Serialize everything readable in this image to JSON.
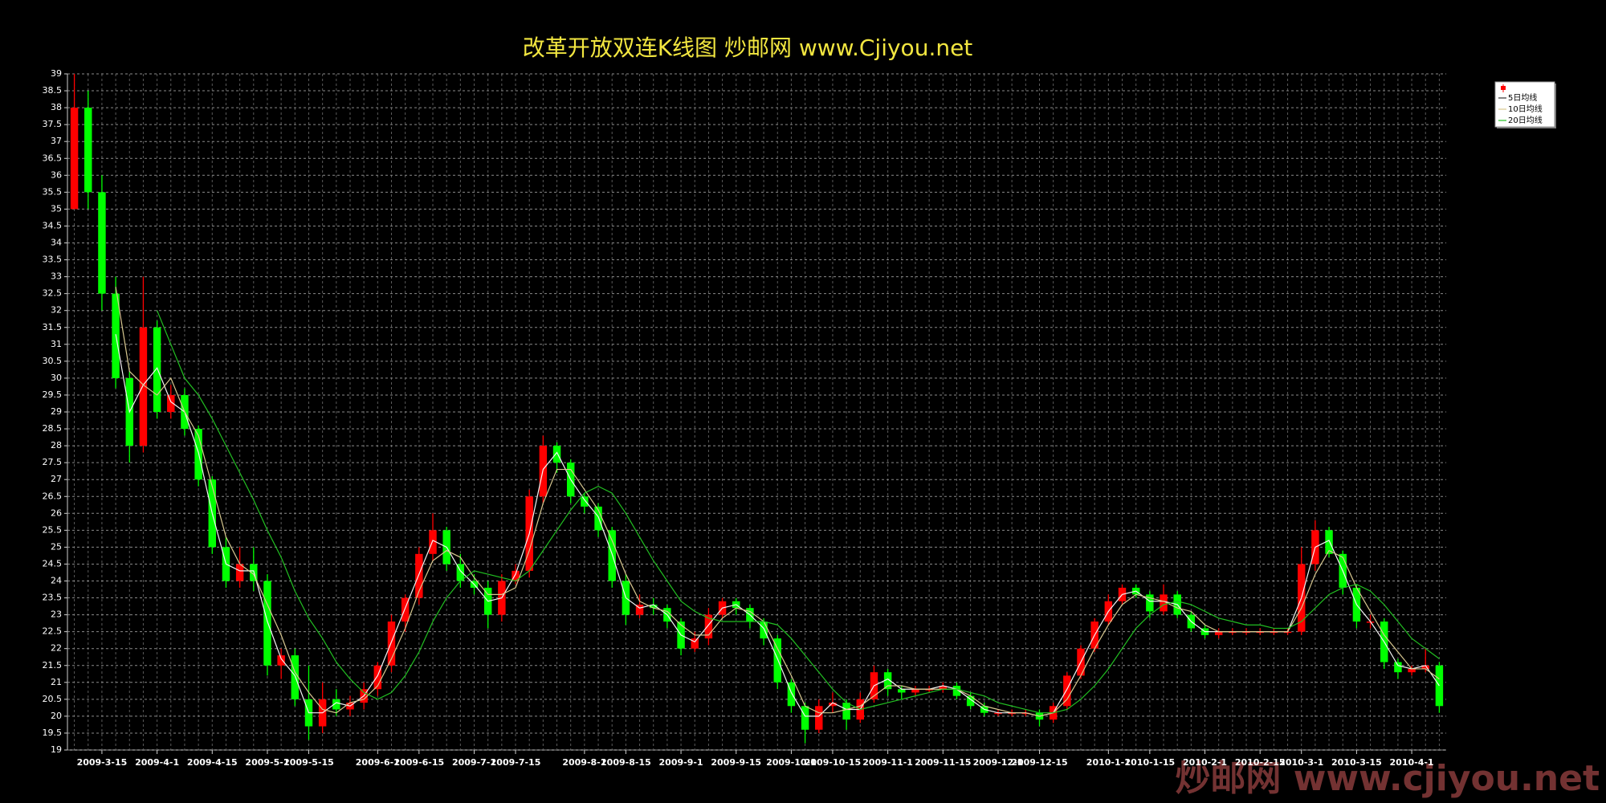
{
  "chart_data": {
    "type": "candlestick",
    "title": "改革开放双连K线图  炒邮网 www.Cjiyou.net",
    "watermark": "炒邮网 www.cjiyou.net",
    "categories": [
      null,
      null,
      "2009-3-15",
      null,
      null,
      null,
      "2009-4-1",
      null,
      null,
      null,
      "2009-4-15",
      null,
      null,
      null,
      "2009-5-1",
      null,
      null,
      "2009-5-15",
      null,
      null,
      null,
      null,
      "2009-6-1",
      null,
      null,
      "2009-6-15",
      null,
      null,
      null,
      "2009-7-1",
      null,
      null,
      "2009-7-15",
      null,
      null,
      null,
      null,
      "2009-8-1",
      null,
      null,
      "2009-8-15",
      null,
      null,
      null,
      "2009-9-1",
      null,
      null,
      null,
      "2009-9-15",
      null,
      null,
      null,
      "2009-10-1",
      null,
      null,
      "2009-10-15",
      null,
      null,
      null,
      "2009-11-1",
      null,
      null,
      null,
      "2009-11-15",
      null,
      null,
      null,
      "2009-12-1",
      null,
      null,
      "2009-12-15",
      null,
      null,
      null,
      null,
      "2010-1-1",
      null,
      null,
      "2010-1-15",
      null,
      null,
      null,
      "2010-2-1",
      null,
      null,
      null,
      "2010-2-15",
      null,
      null,
      "2010-3-1",
      null,
      null,
      null,
      "2010-3-15",
      null,
      null,
      null,
      "2010-4-1",
      null,
      null
    ],
    "ohlc": [
      [
        35,
        39,
        35,
        38
      ],
      [
        38,
        38.5,
        35,
        35.5
      ],
      [
        35.5,
        36,
        32,
        32.5
      ],
      [
        32.5,
        33,
        29.7,
        30
      ],
      [
        30,
        30.2,
        27.5,
        28
      ],
      [
        28,
        33,
        27.8,
        31.5
      ],
      [
        31.5,
        31.7,
        28.8,
        29
      ],
      [
        29,
        29.8,
        28.8,
        29.5
      ],
      [
        29.5,
        29.7,
        28.3,
        28.5
      ],
      [
        28.5,
        28.6,
        26.8,
        27
      ],
      [
        27,
        27.1,
        24.8,
        25
      ],
      [
        25,
        25.3,
        23.8,
        24
      ],
      [
        24,
        25,
        23.8,
        24.5
      ],
      [
        24.5,
        25,
        23.7,
        24
      ],
      [
        24,
        24.2,
        21.2,
        21.5
      ],
      [
        21.5,
        22,
        21.1,
        21.8
      ],
      [
        21.8,
        22,
        20.3,
        20.5
      ],
      [
        20.5,
        21.5,
        19.3,
        19.7
      ],
      [
        19.7,
        21,
        19.5,
        20.5
      ],
      [
        20.5,
        20.8,
        20,
        20.2
      ],
      [
        20.2,
        20.6,
        20,
        20.4
      ],
      [
        20.4,
        21,
        20.2,
        20.8
      ],
      [
        20.8,
        21.6,
        20.6,
        21.5
      ],
      [
        21.5,
        23,
        21.3,
        22.8
      ],
      [
        22.8,
        23.6,
        22.5,
        23.5
      ],
      [
        23.5,
        25,
        23.3,
        24.8
      ],
      [
        24.8,
        26,
        24.6,
        25.5
      ],
      [
        25.5,
        25.6,
        24.3,
        24.5
      ],
      [
        24.5,
        24.8,
        23.8,
        24
      ],
      [
        24,
        24.2,
        23.6,
        23.8
      ],
      [
        23.8,
        24,
        22.6,
        23
      ],
      [
        23,
        24.2,
        22.8,
        24
      ],
      [
        24,
        24.5,
        23.9,
        24.3
      ],
      [
        24.3,
        26.7,
        24.1,
        26.5
      ],
      [
        26.5,
        28.3,
        26.3,
        28
      ],
      [
        28,
        28.1,
        27.2,
        27.5
      ],
      [
        27.5,
        27.6,
        26.3,
        26.5
      ],
      [
        26.5,
        26.6,
        26,
        26.2
      ],
      [
        26.2,
        26.3,
        25.3,
        25.5
      ],
      [
        25.5,
        25.6,
        23.8,
        24
      ],
      [
        24,
        24.2,
        22.7,
        23
      ],
      [
        23,
        23.6,
        22.9,
        23.3
      ],
      [
        23.3,
        23.5,
        23,
        23.2
      ],
      [
        23.2,
        23.3,
        22.6,
        22.8
      ],
      [
        22.8,
        22.9,
        21.8,
        22
      ],
      [
        22,
        22.5,
        21.9,
        22.3
      ],
      [
        22.3,
        23.2,
        22.1,
        23
      ],
      [
        23,
        23.5,
        22.9,
        23.4
      ],
      [
        23.4,
        23.5,
        23,
        23.2
      ],
      [
        23.2,
        23.3,
        22.6,
        22.8
      ],
      [
        22.8,
        22.9,
        22.1,
        22.3
      ],
      [
        22.3,
        22.4,
        20.8,
        21
      ],
      [
        21,
        21.1,
        20.1,
        20.3
      ],
      [
        20.3,
        20.4,
        19.2,
        19.6
      ],
      [
        19.6,
        20.5,
        19.5,
        20.3
      ],
      [
        20.3,
        20.7,
        20.1,
        20.4
      ],
      [
        20.4,
        20.5,
        19.6,
        19.9
      ],
      [
        19.9,
        20.7,
        19.8,
        20.5
      ],
      [
        20.5,
        21.5,
        20.4,
        21.3
      ],
      [
        21.3,
        21.4,
        20.6,
        20.8
      ],
      [
        20.8,
        20.9,
        20.5,
        20.7
      ],
      [
        20.7,
        20.9,
        20.6,
        20.8
      ],
      [
        20.8,
        20.9,
        20.7,
        20.8
      ],
      [
        20.8,
        21,
        20.7,
        20.9
      ],
      [
        20.9,
        21,
        20.5,
        20.6
      ],
      [
        20.6,
        20.7,
        20.2,
        20.3
      ],
      [
        20.3,
        20.4,
        20,
        20.1
      ],
      [
        20.1,
        20.2,
        20,
        20.1
      ],
      [
        20.1,
        20.2,
        20,
        20.1
      ],
      [
        20.1,
        20.2,
        20,
        20.1
      ],
      [
        20.1,
        20.2,
        19.7,
        19.9
      ],
      [
        19.9,
        20.4,
        19.8,
        20.3
      ],
      [
        20.3,
        21.3,
        20.2,
        21.2
      ],
      [
        21.2,
        22.1,
        21.1,
        22
      ],
      [
        22,
        22.9,
        21.9,
        22.8
      ],
      [
        22.8,
        23.6,
        22.7,
        23.4
      ],
      [
        23.4,
        23.9,
        23.3,
        23.8
      ],
      [
        23.8,
        23.9,
        23.5,
        23.6
      ],
      [
        23.6,
        23.7,
        22.9,
        23.1
      ],
      [
        23.1,
        23.9,
        23,
        23.6
      ],
      [
        23.6,
        23.7,
        22.9,
        23
      ],
      [
        23,
        23.1,
        22.5,
        22.6
      ],
      [
        22.6,
        22.7,
        22.3,
        22.4
      ],
      [
        22.4,
        22.6,
        22.3,
        22.5
      ],
      [
        22.5,
        22.6,
        22.4,
        22.5
      ],
      [
        22.5,
        22.6,
        22.4,
        22.5
      ],
      [
        22.5,
        22.6,
        22.4,
        22.5
      ],
      [
        22.5,
        22.6,
        22.4,
        22.5
      ],
      [
        22.5,
        22.6,
        22.4,
        22.5
      ],
      [
        22.5,
        25,
        22.4,
        24.5
      ],
      [
        24.5,
        25.8,
        24.3,
        25.5
      ],
      [
        25.5,
        25.6,
        24.7,
        24.8
      ],
      [
        24.8,
        24.9,
        23.6,
        23.8
      ],
      [
        23.8,
        23.9,
        22.6,
        22.8
      ],
      [
        22.8,
        23,
        22.6,
        22.8
      ],
      [
        22.8,
        22.9,
        21.4,
        21.6
      ],
      [
        21.6,
        21.7,
        21.1,
        21.3
      ],
      [
        21.3,
        21.5,
        21.2,
        21.4
      ],
      [
        21.4,
        22,
        21.3,
        21.5
      ],
      [
        21.5,
        21.6,
        20.1,
        20.3
      ]
    ],
    "candle_colors": {
      "up": "#ff0000",
      "down": "#00ff00"
    },
    "series": [
      {
        "name": "5日均线",
        "color": "#f4f4f4",
        "values": [
          null,
          null,
          null,
          31.3,
          29,
          29.8,
          30.3,
          29.3,
          29,
          27.8,
          26,
          24.5,
          24.3,
          24.3,
          22.8,
          21.7,
          21.2,
          20.1,
          20.1,
          20.4,
          20.3,
          20.6,
          21.2,
          22.2,
          23.2,
          24.2,
          25.2,
          25,
          24.3,
          23.9,
          23.4,
          23.5,
          24.2,
          25.4,
          27.3,
          27.8,
          27,
          26.4,
          25.9,
          24.8,
          23.5,
          23.2,
          23.3,
          23,
          22.4,
          22.2,
          22.7,
          23.2,
          23.3,
          23,
          22.6,
          21.7,
          20.7,
          20,
          20,
          20.4,
          20.2,
          20.2,
          20.9,
          21.1,
          20.8,
          20.8,
          20.8,
          20.9,
          20.8,
          20.5,
          20.2,
          20.1,
          20.1,
          20.1,
          20,
          20.1,
          20.8,
          21.6,
          22.4,
          23.1,
          23.6,
          23.7,
          23.4,
          23.4,
          23.3,
          22.8,
          22.5,
          22.5,
          22.5,
          22.5,
          22.5,
          22.5,
          22.5,
          23.5,
          25,
          25.2,
          24.3,
          23.3,
          22.8,
          22.2,
          21.5,
          21.4,
          21.5,
          20.9
        ]
      },
      {
        "name": "10日均线",
        "color": "#d8c890",
        "values": [
          null,
          null,
          null,
          32.7,
          30.2,
          29.8,
          29.5,
          30,
          29,
          28.3,
          26.8,
          25.3,
          24.5,
          24.2,
          23.3,
          22.4,
          21.3,
          20.7,
          20.2,
          20.1,
          20.4,
          20.5,
          20.9,
          21.7,
          22.6,
          23.7,
          24.6,
          24.9,
          24.7,
          24.1,
          23.6,
          23.6,
          23.8,
          24.9,
          26.3,
          27.3,
          27.3,
          26.7,
          26.1,
          25.2,
          24.2,
          23.4,
          23.2,
          23.1,
          22.7,
          22.4,
          22.4,
          22.9,
          23.2,
          23.1,
          22.8,
          22,
          21.2,
          20.3,
          20.1,
          20.1,
          20.2,
          20.3,
          20.6,
          20.9,
          20.9,
          20.8,
          20.8,
          20.8,
          20.8,
          20.6,
          20.3,
          20.2,
          20.1,
          20.1,
          20,
          20.1,
          20.5,
          21.2,
          22,
          22.7,
          23.3,
          23.6,
          23.5,
          23.4,
          23.2,
          23.1,
          22.7,
          22.5,
          22.5,
          22.5,
          22.5,
          22.5,
          22.5,
          23.2,
          24.2,
          24.9,
          24.7,
          23.8,
          23.1,
          22.4,
          21.9,
          21.4,
          21.4,
          21.1
        ]
      },
      {
        "name": "20日均线",
        "color": "#22c022",
        "values": [
          null,
          null,
          null,
          null,
          null,
          null,
          32,
          31,
          30,
          29.5,
          28.8,
          28,
          27.2,
          26.4,
          25.5,
          24.7,
          23.7,
          22.9,
          22.3,
          21.6,
          21.1,
          20.7,
          20.5,
          20.7,
          21.2,
          21.9,
          22.8,
          23.5,
          24,
          24.3,
          24.2,
          24.1,
          24,
          24.3,
          24.9,
          25.5,
          26.1,
          26.6,
          26.8,
          26.6,
          26,
          25.3,
          24.6,
          24,
          23.4,
          23.1,
          22.9,
          22.8,
          22.8,
          22.8,
          22.8,
          22.7,
          22.3,
          21.8,
          21.3,
          20.8,
          20.4,
          20.2,
          20.3,
          20.4,
          20.5,
          20.6,
          20.7,
          20.8,
          20.8,
          20.7,
          20.6,
          20.4,
          20.3,
          20.2,
          20.1,
          20.1,
          20.2,
          20.5,
          20.9,
          21.4,
          22,
          22.6,
          23,
          23.3,
          23.4,
          23.3,
          23.1,
          22.9,
          22.8,
          22.7,
          22.7,
          22.6,
          22.6,
          22.8,
          23.2,
          23.6,
          23.8,
          23.9,
          23.7,
          23.3,
          22.8,
          22.3,
          22,
          21.7
        ]
      }
    ],
    "ylim": [
      19,
      39
    ],
    "yticks": [
      19,
      19.5,
      20,
      20.5,
      21,
      21.5,
      22,
      22.5,
      23,
      23.5,
      24,
      24.5,
      25,
      25.5,
      26,
      26.5,
      27,
      27.5,
      28,
      28.5,
      29,
      29.5,
      30,
      30.5,
      31,
      31.5,
      32,
      32.5,
      33,
      33.5,
      34,
      34.5,
      35,
      35.5,
      36,
      36.5,
      37,
      37.5,
      38,
      38.5,
      39
    ],
    "grid": true,
    "legend": "top-right"
  }
}
